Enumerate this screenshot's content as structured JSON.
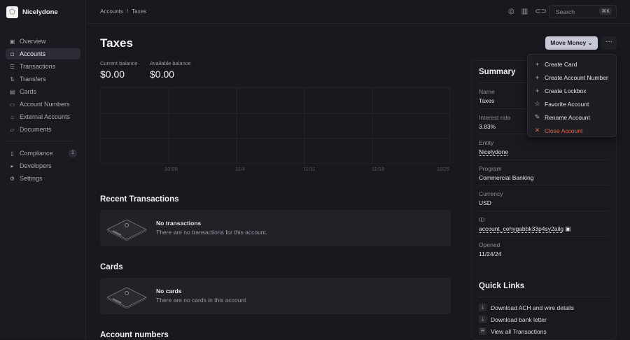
{
  "brand": {
    "name": "Nicelydone"
  },
  "sidebar": {
    "items": [
      {
        "label": "Overview",
        "icon": "chart-icon"
      },
      {
        "label": "Accounts",
        "icon": "wallet-icon",
        "active": true
      },
      {
        "label": "Transactions",
        "icon": "list-icon"
      },
      {
        "label": "Transfers",
        "icon": "arrows-icon"
      },
      {
        "label": "Cards",
        "icon": "card-icon"
      },
      {
        "label": "Account Numbers",
        "icon": "number-icon"
      },
      {
        "label": "External Accounts",
        "icon": "bank-icon"
      },
      {
        "label": "Documents",
        "icon": "folder-icon"
      }
    ],
    "secondary": [
      {
        "label": "Compliance",
        "icon": "document-icon",
        "badge": "1"
      },
      {
        "label": "Developers",
        "icon": "terminal-icon"
      },
      {
        "label": "Settings",
        "icon": "gear-icon"
      }
    ]
  },
  "header": {
    "breadcrumb": [
      "Accounts",
      "/",
      "Taxes"
    ],
    "search_placeholder": "Search",
    "shortcut": "⌘K"
  },
  "page": {
    "title": "Taxes",
    "current_label": "Current balance",
    "current_value": "$0.00",
    "available_label": "Available balance",
    "available_value": "$0.00"
  },
  "chart": {
    "x_ticks": [
      "10/28",
      "11/4",
      "11/11",
      "11/18",
      "11/25"
    ]
  },
  "actions": {
    "move_money": "Move Money",
    "more": "···"
  },
  "menu": [
    {
      "label": "Create Card",
      "icon": "plus-icon"
    },
    {
      "label": "Create Account Number",
      "icon": "plus-icon"
    },
    {
      "label": "Create Lockbox",
      "icon": "plus-icon"
    },
    {
      "label": "Favorite Account",
      "icon": "star-icon"
    },
    {
      "label": "Rename Account",
      "icon": "pencil-icon"
    },
    {
      "label": "Close Account",
      "icon": "close-icon",
      "color": "#e0654a"
    }
  ],
  "sections": {
    "transactions": {
      "title": "Recent Transactions",
      "empty_title": "No transactions",
      "empty_text": "There are no transactions for this account."
    },
    "cards": {
      "title": "Cards",
      "empty_title": "No cards",
      "empty_text": "There are no cards in this account"
    },
    "numbers": {
      "title": "Account numbers"
    }
  },
  "summary": {
    "title": "Summary",
    "rows": [
      {
        "label": "Name",
        "value": "Taxes"
      },
      {
        "label": "Interest rate",
        "value": "3.83%"
      },
      {
        "label": "Entity",
        "value": "Nicelydone"
      },
      {
        "label": "Program",
        "value": "Commercial Banking"
      },
      {
        "label": "Currency",
        "value": "USD"
      },
      {
        "label": "ID",
        "value": "account_cehygabbk33p4sy2ailg"
      },
      {
        "label": "Opened",
        "value": "11/24/24"
      }
    ]
  },
  "quick_links": {
    "title": "Quick Links",
    "items": [
      "Download ACH and wire details",
      "Download bank letter",
      "View all Transactions"
    ]
  }
}
